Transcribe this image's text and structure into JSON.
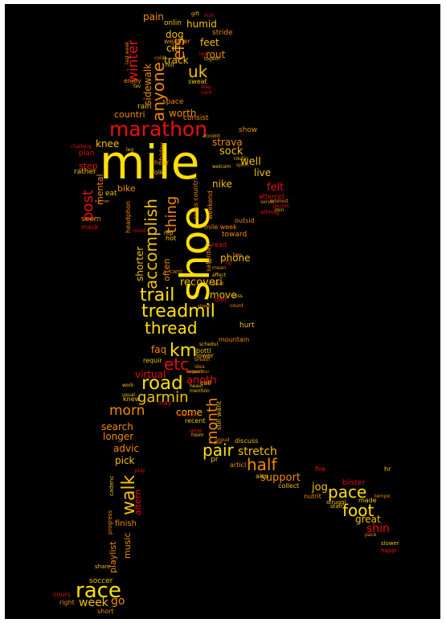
{
  "palette": {
    "yellow": "#ffe000",
    "gold": "#f2c200",
    "orange": "#f28a00",
    "red": "#e8110c",
    "dark_red": "#b30000"
  },
  "words": {
    "mile": "mile",
    "shoe": "shoe",
    "marathon": "marathon",
    "race": "race",
    "road": "road",
    "treadmil": "treadmil",
    "trail": "trail",
    "thread": "thread",
    "km": "km",
    "etc": "etc",
    "garmin": "garmin",
    "half": "half",
    "pace": "pace",
    "foot": "foot",
    "walk": "walk",
    "pair": "pair",
    "month": "month",
    "accomplish": "accomplish",
    "thing": "thing",
    "post": "post",
    "anyone": "anyone",
    "els": "els",
    "winter": "winter",
    "uk": "uk",
    "morn": "morn",
    "week": "week",
    "go": "go",
    "shin": "shin",
    "great": "great",
    "stretch": "stretch",
    "support": "support",
    "jog": "jog",
    "phone": "phone",
    "live": "live",
    "felt": "felt",
    "well": "well",
    "sock": "sock",
    "strava": "strava",
    "worth": "worth",
    "countri": "countri",
    "knee": "knee",
    "step": "step",
    "nike": "nike",
    "bike": "bike",
    "mental": "mental",
    "recoveri": "recoveri",
    "often": "often",
    "shorter": "shorter",
    "move": "move",
    "hurt": "hurt",
    "faq": "faq",
    "virtual": "virtual",
    "anoth": "anoth",
    "come": "come",
    "search": "search",
    "longer": "longer",
    "advic": "advic",
    "pick": "pick",
    "altern": "altern",
    "music": "music",
    "playlist": "playlist",
    "finish": "finish",
    "soccer": "soccer",
    "cours": "cours",
    "right": "right",
    "short": "short",
    "pain": "pain",
    "dog": "dog",
    "citi": "citi",
    "rout": "rout",
    "track": "track",
    "feet": "feet",
    "humid": "humid",
    "onlin": "onlin",
    "stride": "stride",
    "weather": "weather",
    "sweat": "sweat",
    "enjoy": "enjoy",
    "rain": "rain",
    "space": "space",
    "consist": "consist",
    "sidewalk": "sidewalk",
    "show": "show",
    "plan": "plan",
    "rather": "rather",
    "seem": "seem",
    "mask": "mask",
    "eat": "eat",
    "hear": "hear",
    "folk": "folk",
    "friday": "friday",
    "attempt": "attempt",
    "allmag": "allmag",
    "outsid": "outsid",
    "toward": "toward",
    "mile_week": "mile week",
    "cross_countri": "cross countri",
    "headphon": "headphon",
    "weekend": "weekend",
    "saturday": "saturday",
    "hot": "hot",
    "rep": "rep",
    "read": "read",
    "diet": "diet",
    "mountain": "mountain",
    "bottl": "bottl",
    "requir": "requir",
    "lower": "lower",
    "call": "call",
    "knew": "knew",
    "may": "may",
    "recent": "recent",
    "still_want": "still want",
    "discuss": "discuss",
    "pr": "pr",
    "articl": "articl",
    "also": "also",
    "collect": "collect",
    "nutrit": "nutrit",
    "fire": "fire",
    "blister": "blister",
    "made": "made",
    "hr": "hr",
    "slower": "slower",
    "happi": "happi",
    "stair": "stair",
    "struggl": "struggl",
    "share": "share",
    "cadenc": "cadenc",
    "progress": "progress",
    "gift": "gift",
    "togeth": "togeth",
    "step_s": "step",
    "card": "card",
    "gear": "gear",
    "room": "room",
    "cold": "cold",
    "hill": "hill",
    "last_week": "last week",
    "fav": "fav",
    "challeng": "challeng",
    "routin": "routin",
    "sport": "sport",
    "welcom": "welcom",
    "interest": "interest",
    "person": "person",
    "min": "min",
    "schedul": "schedul",
    "heavi": "heavi",
    "mention": "mention",
    "usual": "usual",
    "work": "work",
    "sometim": "sometim",
    "play": "play",
    "lost": "lost",
    "inch": "inch",
    "lot": "lot",
    "carri": "carri",
    "affect": "affect",
    "mind": "mind",
    "expect": "expect",
    "idea": "idea",
    "temperatur": "temperatur",
    "tip": "tip",
    "servic": "servic",
    "least": "least",
    "mean": "mean",
    "two": "two",
    "stoppt": "stoppt",
    "breath": "breath",
    "miss": "miss",
    "count": "count",
    "accoint": "accoint",
    "leg": "leg",
    "run_ner": "run ner",
    "proud": "proud",
    "goal": "goal",
    "tempo": "tempo",
    "pace_s": "pace"
  }
}
